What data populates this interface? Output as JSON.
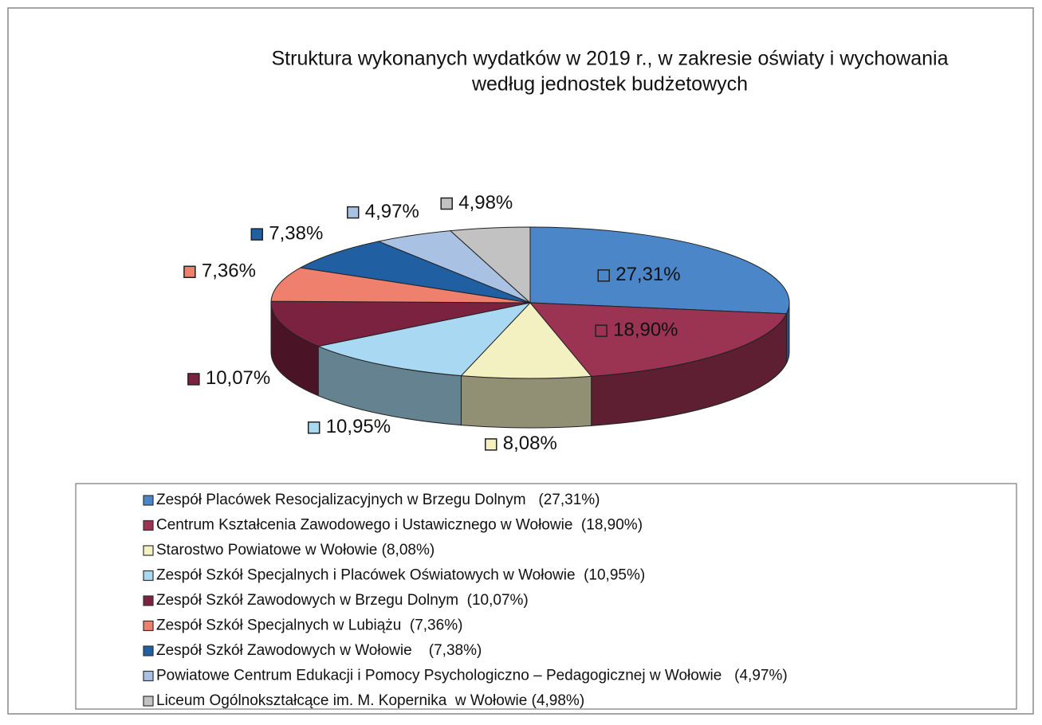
{
  "chart_data": {
    "type": "pie",
    "title": "Struktura wykonanych wydatków w 2019 r., w zakresie oświaty i wychowania",
    "subtitle": "według jednostek budżetowych",
    "categories": [
      "Zespół Placówek Resocjalizacyjnych w Brzegu Dolnym   (27,31%)",
      "Centrum Kształcenia Zawodowego i Ustawicznego w Wołowie  (18,90%)",
      "Starostwo Powiatowe w Wołowie (8,08%)",
      "Zespół Szkół Specjalnych i Placówek Oświatowych w Wołowie  (10,95%)",
      "Zespół Szkół Zawodowych w Brzegu Dolnym  (10,07%)",
      "Zespół Szkół Specjalnych w Lubiążu  (7,36%)",
      "Zespół Szkół Zawodowych w Wołowie    (7,38%)",
      "Powiatowe Centrum Edukacji i Pomocy Psychologiczno – Pedagogicznej w Wołowie   (4,97%)",
      "Liceum Ogólnokształcące im. M. Kopernika  w Wołowie (4,98%)"
    ],
    "values": [
      27.31,
      18.9,
      8.08,
      10.95,
      10.07,
      7.36,
      7.38,
      4.97,
      4.98
    ],
    "value_labels": [
      "27,31%",
      "18,90%",
      "8,08%",
      "10,95%",
      "10,07%",
      "7,36%",
      "7,38%",
      "4,97%",
      "4,98%"
    ],
    "colors": [
      "#4a86c8",
      "#9b3352",
      "#f3f0c2",
      "#a9d9f2",
      "#7b2240",
      "#f0806e",
      "#1f5fa2",
      "#a9c1e3",
      "#c2c2c2"
    ],
    "legend": "bottom"
  }
}
